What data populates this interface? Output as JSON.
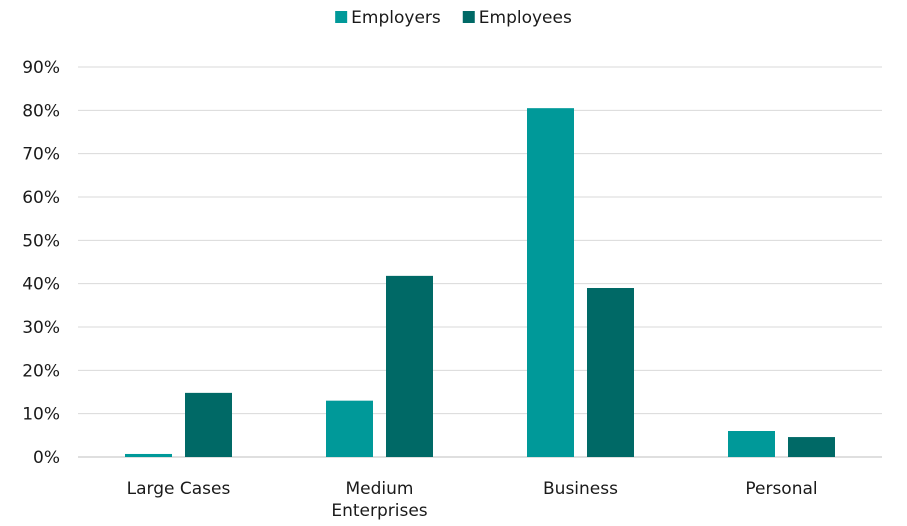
{
  "chart_data": {
    "type": "bar",
    "categories": [
      [
        "Large Cases"
      ],
      [
        "Medium",
        "Enterprises"
      ],
      [
        "Business"
      ],
      [
        "Personal"
      ]
    ],
    "series": [
      {
        "name": "Employers",
        "values": [
          0.7,
          13,
          80.5,
          6
        ],
        "color": "#009999"
      },
      {
        "name": "Employees",
        "values": [
          14.8,
          41.8,
          39,
          4.6
        ],
        "color": "#006966"
      }
    ],
    "ylim": [
      0,
      90
    ],
    "yticks": [
      0,
      10,
      20,
      30,
      40,
      50,
      60,
      70,
      80,
      90
    ],
    "ytick_labels": [
      "0%",
      "10%",
      "20%",
      "30%",
      "40%",
      "50%",
      "60%",
      "70%",
      "80%",
      "90%"
    ],
    "legend_position": "top-center",
    "grid": true
  }
}
